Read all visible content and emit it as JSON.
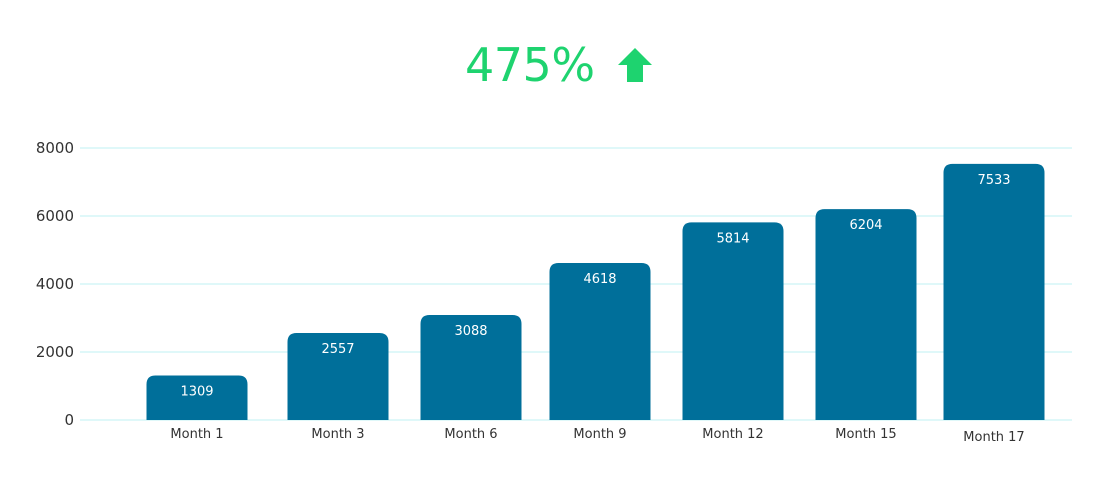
{
  "headline": {
    "text": "475%",
    "icon": "up-arrow-icon",
    "color": "#1ed36f"
  },
  "colors": {
    "bar": "#006f9a",
    "grid": "#bff0f3",
    "axis_text": "#333333",
    "bar_label": "#ffffff"
  },
  "chart_data": {
    "type": "bar",
    "title": "",
    "xlabel": "",
    "ylabel": "",
    "categories": [
      "Month 1",
      "Month 3",
      "Month 6",
      "Month 9",
      "Month 12",
      "Month 15",
      "Month 17"
    ],
    "values": [
      1309,
      2557,
      3088,
      4618,
      5814,
      6204,
      7533
    ],
    "ylim": [
      0,
      8000
    ],
    "yticks": [
      0,
      2000,
      4000,
      6000,
      8000
    ],
    "grid": true,
    "data_labels": true,
    "legend": "none"
  }
}
